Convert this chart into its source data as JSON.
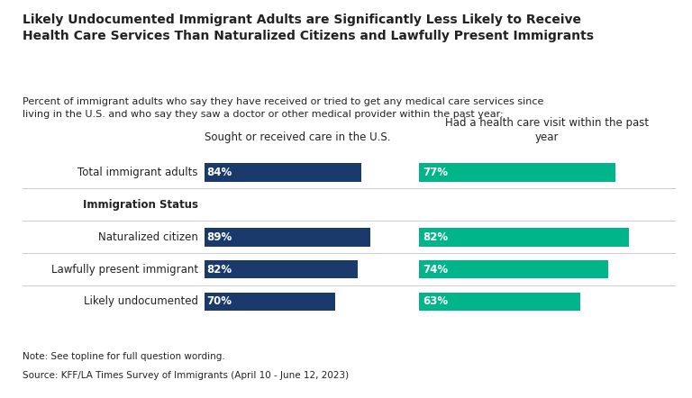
{
  "title_line1": "Likely Undocumented Immigrant Adults are Significantly Less Likely to Receive",
  "title_line2": "Health Care Services Than Naturalized Citizens and Lawfully Present Immigrants",
  "subtitle_line1": "Percent of immigrant adults who say they have received or tried to get any medical care services since",
  "subtitle_line2": "living in the U.S. and who say they saw a doctor or other medical provider within the past year:",
  "col1_header": "Sought or received care in the U.S.",
  "col2_header_line1": "Had a health care visit within the past",
  "col2_header_line2": "year",
  "data_rows": [
    "Total immigrant adults",
    "Naturalized citizen",
    "Lawfully present immigrant",
    "Likely undocumented"
  ],
  "blue_values": [
    84,
    89,
    82,
    70
  ],
  "green_values": [
    77,
    82,
    74,
    63
  ],
  "blue_color": "#1a3a6b",
  "green_color": "#00b589",
  "note": "Note: See topline for full question wording.",
  "source": "Source: KFF/LA Times Survey of Immigrants (April 10 - June 12, 2023)",
  "background_color": "#ffffff",
  "text_color": "#222222",
  "separator_color": "#cccccc"
}
